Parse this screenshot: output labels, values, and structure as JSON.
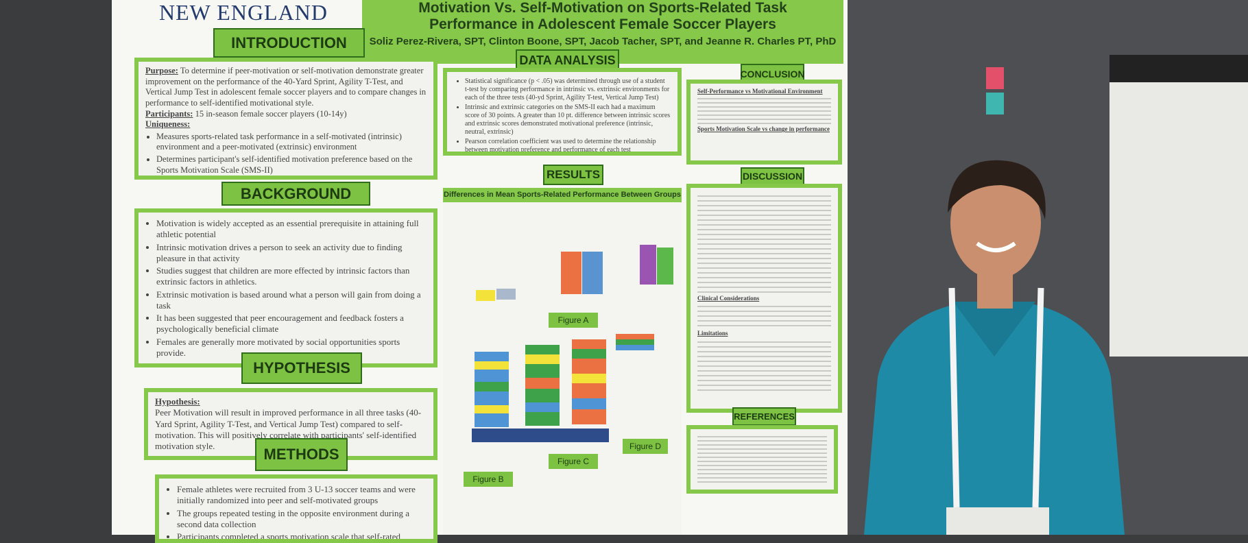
{
  "poster": {
    "institution": "NEW ENGLAND",
    "title_lines": [
      "Motivation Vs. Self-Motivation on Sports-Related Task",
      "Performance in Adolescent Female Soccer Players"
    ],
    "authors": "Soliz Perez-Rivera, SPT, Clinton Boone, SPT, Jacob Tacher, SPT, and Jeanne R. Charles PT, PhD",
    "introduction": {
      "heading": "INTRODUCTION",
      "purpose_label": "Purpose:",
      "purpose": "To determine if peer-motivation or self-motivation demonstrate greater improvement on the performance of the 40-Yard Sprint, Agility T-Test, and Vertical Jump Test in adolescent female soccer players and to compare changes in performance to self-identified motivational style.",
      "participants_label": "Participants:",
      "participants": "15 in-season female soccer players (10-14y)",
      "uniqueness_label": "Uniqueness:",
      "uniqueness": [
        "Measures sports-related task performance in a self-motivated (intrinsic) environment and a peer-motivated (extrinsic) environment",
        "Determines participant's self-identified motivation preference based on the Sports Motivation Scale (SMS-II)"
      ]
    },
    "background": {
      "heading": "BACKGROUND",
      "items": [
        "Motivation is widely accepted as an essential prerequisite in attaining full athletic potential",
        "Intrinsic motivation drives a person to seek an activity due to finding pleasure in that activity",
        "Studies suggest that children are more effected by intrinsic factors than extrinsic factors in athletics.",
        "Extrinsic motivation is based around what a person will gain from doing a task",
        "It has been suggested that peer encouragement and feedback fosters a psychologically beneficial climate",
        "Females are generally more motivated by social opportunities sports provide."
      ]
    },
    "hypothesis": {
      "heading": "HYPOTHESIS",
      "label": "Hypothesis:",
      "text": "Peer Motivation will result in improved performance in all three tasks (40-Yard Sprint, Agility T-Test, and Vertical Jump Test) compared to self-motivation. This will positively correlate with participants' self-identified motivation style."
    },
    "methods": {
      "heading": "METHODS",
      "items": [
        "Female athletes were recruited from 3 U-13 soccer teams and were initially randomized into peer and self-motivated groups",
        "The groups repeated testing in the opposite environment during a second data collection",
        "Participants completed a sports motivation scale that self-rated intrinsic and extrinsic motivation"
      ]
    },
    "data_analysis": {
      "heading": "DATA ANALYSIS",
      "items": [
        "Statistical significance (p < .05) was determined through use of a student t-test by comparing performance in intrinsic vs. extrinsic environments for each of the three tests (40-yd Sprint, Agility T-test, Vertical Jump Test)",
        "Intrinsic and extrinsic categories on the SMS-II each had a maximum score of 30 points. A greater than 10 pt. difference between intrinsic scores and extrinsic scores demonstrated motivational preference (intrinsic, neutral, extrinsic)",
        "Pearson correlation coefficient was used to determine the relationship between motivation preference and performance of each test"
      ]
    },
    "results": {
      "heading": "RESULTS",
      "subtitle": "Differences in Mean Sports-Related Performance Between Groups",
      "figures": [
        "Figure A",
        "Figure B",
        "Figure C",
        "Figure D"
      ]
    },
    "conclusion": {
      "heading": "CONCLUSION",
      "subheadings": [
        "Self-Performance vs Motivational Environment",
        "Sports Motivation Scale vs change in performance"
      ]
    },
    "discussion": {
      "heading": "DISCUSSION",
      "subheadings": [
        "Clinical Considerations",
        "Limitations"
      ]
    },
    "references": {
      "heading": "REFERENCES"
    }
  }
}
